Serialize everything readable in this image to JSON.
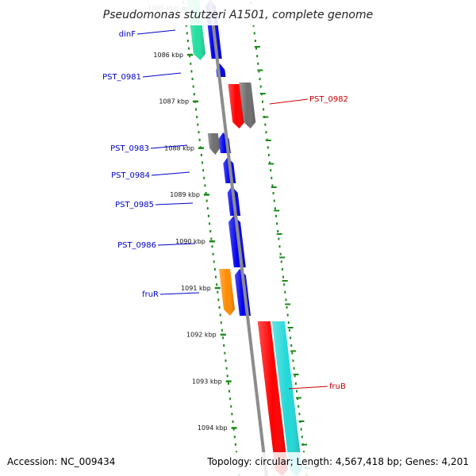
{
  "title": "Pseudomonas stutzeri A1501, complete genome",
  "footer": {
    "accession": "Accession: NC_009434",
    "summary": "Topology: circular; Length: 4,567,418 bp; Genes: 4,201"
  },
  "colors": {
    "backbone": "#8c8c8c",
    "tick": "#1a8a1a",
    "blue": "#0000ee",
    "green": "#22e0a0",
    "gray": "#6e6e6e",
    "red": "#ff0000",
    "orange": "#ff8c00",
    "cyan": "#22d8d8",
    "label_blue": "#0000cc",
    "label_red": "#cc0000"
  },
  "ruler": [
    {
      "label": "1085 kbp"
    },
    {
      "label": "1086 kbp"
    },
    {
      "label": "1087 kbp"
    },
    {
      "label": "1088 kbp"
    },
    {
      "label": "1089 kbp"
    },
    {
      "label": "1090 kbp"
    },
    {
      "label": "1091 kbp"
    },
    {
      "label": "1092 kbp"
    },
    {
      "label": "1093 kbp"
    },
    {
      "label": "1094 kbp"
    }
  ],
  "gene_labels": [
    {
      "name": "dinF",
      "color": "label_blue"
    },
    {
      "name": "PST_0981",
      "color": "label_blue"
    },
    {
      "name": "PST_0982",
      "color": "label_red"
    },
    {
      "name": "PST_0983",
      "color": "label_blue"
    },
    {
      "name": "PST_0984",
      "color": "label_blue"
    },
    {
      "name": "PST_0985",
      "color": "label_blue"
    },
    {
      "name": "PST_0986",
      "color": "label_blue"
    },
    {
      "name": "fruR",
      "color": "label_blue"
    },
    {
      "name": "fruB",
      "color": "label_red"
    }
  ],
  "features": [
    {
      "color": "green",
      "strand": "-"
    },
    {
      "color": "blue",
      "strand": "+"
    },
    {
      "color": "blue",
      "strand": "+"
    },
    {
      "color": "red",
      "strand": "-"
    },
    {
      "color": "gray",
      "strand": "-"
    },
    {
      "color": "gray",
      "strand": "-"
    },
    {
      "color": "blue",
      "strand": "+"
    },
    {
      "color": "blue",
      "strand": "+"
    },
    {
      "color": "blue",
      "strand": "+"
    },
    {
      "color": "blue",
      "strand": "+"
    },
    {
      "color": "orange",
      "strand": "-"
    },
    {
      "color": "blue",
      "strand": "+"
    },
    {
      "color": "red",
      "strand": "-"
    },
    {
      "color": "cyan",
      "strand": "-"
    }
  ]
}
